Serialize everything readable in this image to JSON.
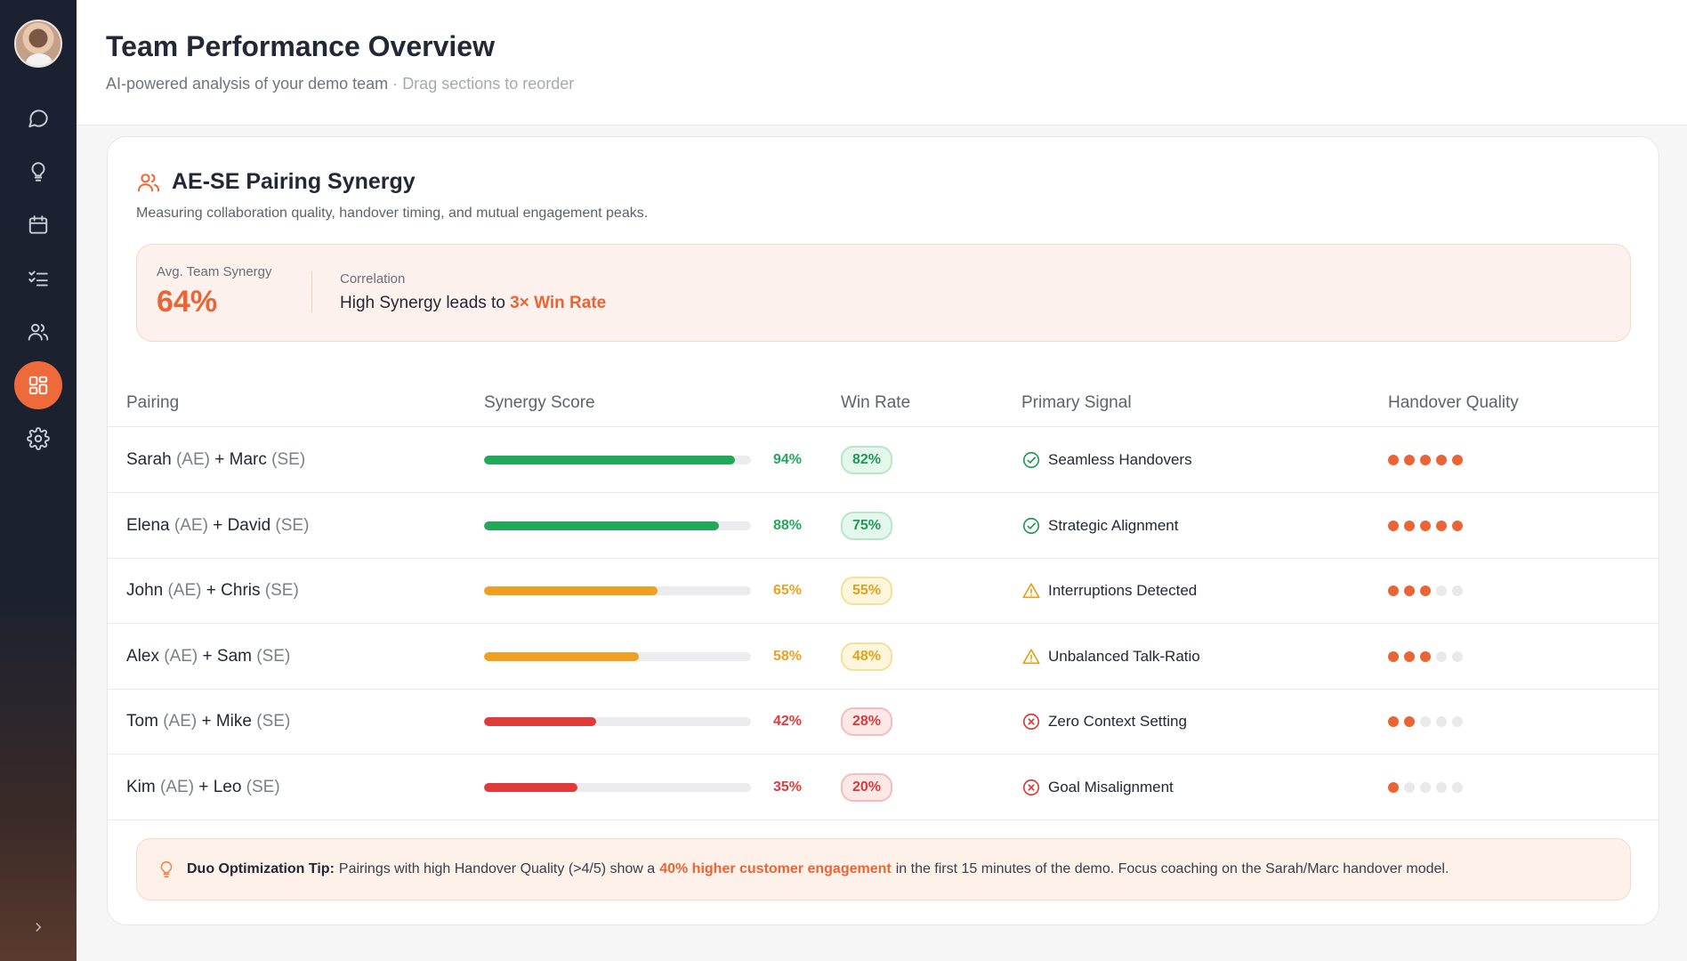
{
  "header": {
    "title": "Team Performance Overview",
    "subtitle": "AI-powered analysis of your demo team",
    "separator": "·",
    "hint": "Drag sections to reorder"
  },
  "sidebar": {
    "items": [
      {
        "icon": "chat-icon",
        "active": false
      },
      {
        "icon": "lightbulb-icon",
        "active": false
      },
      {
        "icon": "calendar-icon",
        "active": false
      },
      {
        "icon": "checklist-icon",
        "active": false
      },
      {
        "icon": "users-icon",
        "active": false
      },
      {
        "icon": "dashboard-icon",
        "active": true
      },
      {
        "icon": "gear-icon",
        "active": false
      }
    ]
  },
  "section": {
    "title": "AE-SE Pairing Synergy",
    "description": "Measuring collaboration quality, handover timing, and mutual engagement peaks."
  },
  "summary": {
    "avg_label": "Avg. Team Synergy",
    "avg_value": "64%",
    "correlation_label": "Correlation",
    "correlation_text": "High Synergy leads to",
    "correlation_highlight": "3× Win Rate"
  },
  "table": {
    "headers": [
      "Pairing",
      "Synergy Score",
      "Win Rate",
      "Primary Signal",
      "Handover Quality"
    ],
    "rows": [
      {
        "ae": "Sarah",
        "se": "Marc",
        "ae_role": "(AE)",
        "se_role": "(SE)",
        "plus": "+",
        "synergy": 94,
        "synergy_label": "94%",
        "win_rate": "82%",
        "level": "good",
        "signal": "Seamless Handovers",
        "handover": 5
      },
      {
        "ae": "Elena",
        "se": "David",
        "ae_role": "(AE)",
        "se_role": "(SE)",
        "plus": "+",
        "synergy": 88,
        "synergy_label": "88%",
        "win_rate": "75%",
        "level": "good",
        "signal": "Strategic Alignment",
        "handover": 5
      },
      {
        "ae": "John",
        "se": "Chris",
        "ae_role": "(AE)",
        "se_role": "(SE)",
        "plus": "+",
        "synergy": 65,
        "synergy_label": "65%",
        "win_rate": "55%",
        "level": "warn",
        "signal": "Interruptions Detected",
        "handover": 3
      },
      {
        "ae": "Alex",
        "se": "Sam",
        "ae_role": "(AE)",
        "se_role": "(SE)",
        "plus": "+",
        "synergy": 58,
        "synergy_label": "58%",
        "win_rate": "48%",
        "level": "warn",
        "signal": "Unbalanced Talk-Ratio",
        "handover": 3
      },
      {
        "ae": "Tom",
        "se": "Mike",
        "ae_role": "(AE)",
        "se_role": "(SE)",
        "plus": "+",
        "synergy": 42,
        "synergy_label": "42%",
        "win_rate": "28%",
        "level": "bad",
        "signal": "Zero Context Setting",
        "handover": 2
      },
      {
        "ae": "Kim",
        "se": "Leo",
        "ae_role": "(AE)",
        "se_role": "(SE)",
        "plus": "+",
        "synergy": 35,
        "synergy_label": "35%",
        "win_rate": "20%",
        "level": "bad",
        "signal": "Goal Misalignment",
        "handover": 1
      }
    ]
  },
  "tip": {
    "label": "Duo Optimization Tip:",
    "text1": "Pairings with high Handover Quality (>4/5) show a",
    "highlight": "40% higher customer engagement",
    "text2": "in the first 15 minutes of the demo. Focus coaching on the Sarah/Marc handover model."
  },
  "colors": {
    "accent": "#ea6435",
    "good": "#22a85a",
    "warn": "#f0a020",
    "bad": "#e03b3b"
  }
}
